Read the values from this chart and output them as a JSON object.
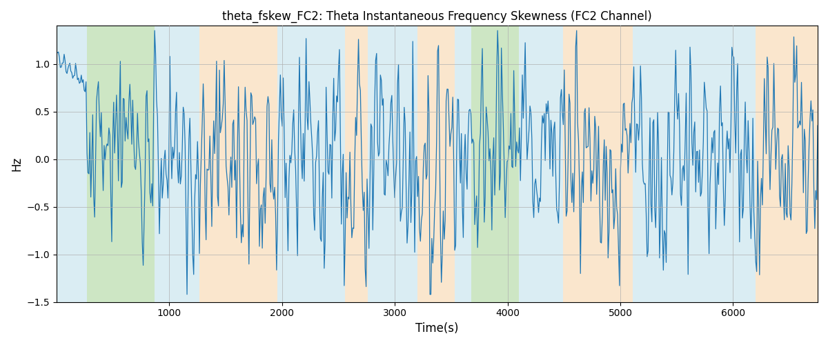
{
  "title": "theta_fskew_FC2: Theta Instantaneous Frequency Skewness (FC2 Channel)",
  "xlabel": "Time(s)",
  "ylabel": "Hz",
  "xlim": [
    0,
    6750
  ],
  "ylim": [
    -1.5,
    1.4
  ],
  "yticks": [
    -1.5,
    -1.0,
    -0.5,
    0.0,
    0.5,
    1.0
  ],
  "xticks": [
    1000,
    2000,
    3000,
    4000,
    5000,
    6000
  ],
  "line_color": "#1f77b4",
  "line_width": 0.9,
  "grid_color": "#b0b0b0",
  "background_regions": [
    {
      "xstart": 0,
      "xend": 270,
      "color": "#add8e6",
      "alpha": 0.45
    },
    {
      "xstart": 270,
      "xend": 870,
      "color": "#90c97c",
      "alpha": 0.45
    },
    {
      "xstart": 870,
      "xend": 1270,
      "color": "#add8e6",
      "alpha": 0.45
    },
    {
      "xstart": 1270,
      "xend": 1960,
      "color": "#f5c891",
      "alpha": 0.45
    },
    {
      "xstart": 1960,
      "xend": 2560,
      "color": "#add8e6",
      "alpha": 0.45
    },
    {
      "xstart": 2560,
      "xend": 2760,
      "color": "#f5c891",
      "alpha": 0.45
    },
    {
      "xstart": 2760,
      "xend": 3200,
      "color": "#add8e6",
      "alpha": 0.45
    },
    {
      "xstart": 3200,
      "xend": 3530,
      "color": "#f5c891",
      "alpha": 0.45
    },
    {
      "xstart": 3530,
      "xend": 3680,
      "color": "#add8e6",
      "alpha": 0.45
    },
    {
      "xstart": 3680,
      "xend": 4100,
      "color": "#90c97c",
      "alpha": 0.45
    },
    {
      "xstart": 4100,
      "xend": 4490,
      "color": "#add8e6",
      "alpha": 0.45
    },
    {
      "xstart": 4490,
      "xend": 5110,
      "color": "#f5c891",
      "alpha": 0.45
    },
    {
      "xstart": 5110,
      "xend": 5680,
      "color": "#add8e6",
      "alpha": 0.45
    },
    {
      "xstart": 5680,
      "xend": 6200,
      "color": "#add8e6",
      "alpha": 0.45
    },
    {
      "xstart": 6200,
      "xend": 6750,
      "color": "#f5c891",
      "alpha": 0.45
    }
  ],
  "n_points": 800,
  "figsize": [
    12.0,
    5.0
  ],
  "dpi": 100
}
